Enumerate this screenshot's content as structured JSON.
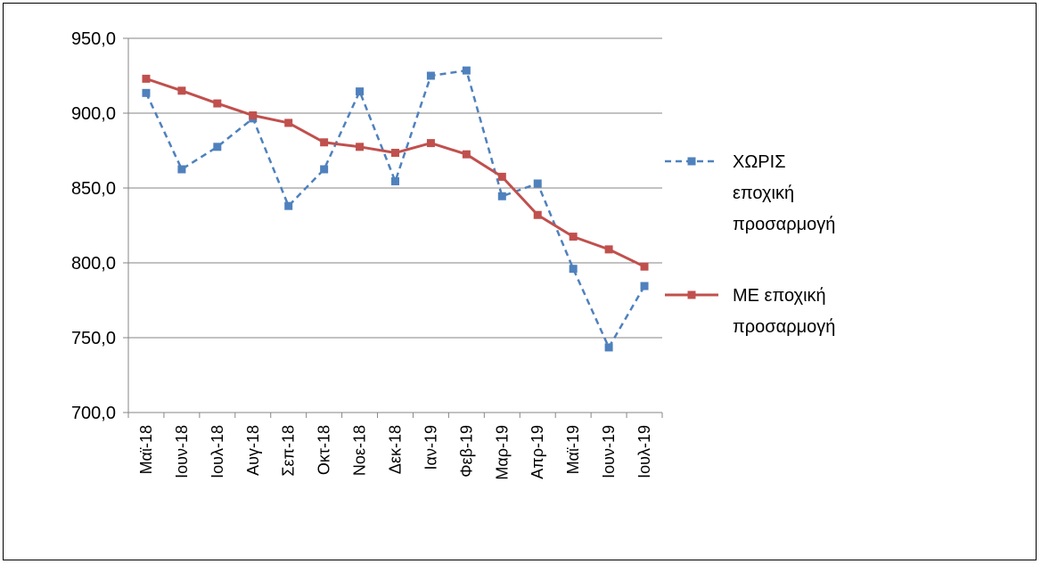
{
  "chart_data": {
    "type": "line",
    "title": "",
    "xlabel": "",
    "ylabel": "",
    "ylim": [
      700,
      950
    ],
    "yticks": [
      "700,0",
      "750,0",
      "800,0",
      "850,0",
      "900,0",
      "950,0"
    ],
    "ytick_values": [
      700,
      750,
      800,
      850,
      900,
      950
    ],
    "grid": true,
    "legend_position": "right",
    "categories": [
      "Μαϊ-18",
      "Ιουν-18",
      "Ιουλ-18",
      "Αυγ-18",
      "Σεπ-18",
      "Οκτ-18",
      "Νοε-18",
      "Δεκ-18",
      "Ιαν-19",
      "Φεβ-19",
      "Μαρ-19",
      "Απρ-19",
      "Μαϊ-19",
      "Ιουν-19",
      "Ιουλ-19"
    ],
    "series": [
      {
        "name": "ΧΩΡΙΣ εποχική προσαρμογή",
        "legend_lines": [
          "ΧΩΡΙΣ",
          "εποχική",
          "προσαρμογή"
        ],
        "color": "#4F81BD",
        "dashed": true,
        "values": [
          913.5,
          862.5,
          877.5,
          896.5,
          838.0,
          862.5,
          914.5,
          854.5,
          925.0,
          928.5,
          844.5,
          853.0,
          796.0,
          743.5,
          784.5
        ]
      },
      {
        "name": "ΜΕ εποχική προσαρμογή",
        "legend_lines": [
          "ΜΕ εποχική",
          "προσαρμογή"
        ],
        "color": "#C0504D",
        "dashed": false,
        "values": [
          923.0,
          915.0,
          906.5,
          898.5,
          893.5,
          880.5,
          877.5,
          873.5,
          880.0,
          872.5,
          857.5,
          832.0,
          817.5,
          809.0,
          797.5
        ]
      }
    ]
  }
}
